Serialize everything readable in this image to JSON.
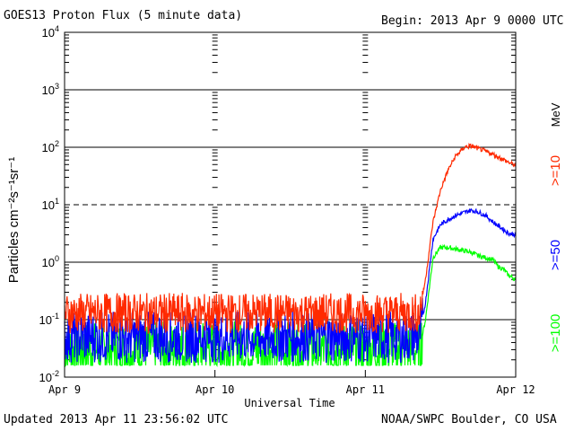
{
  "header": {
    "title": "GOES13 Proton Flux (5 minute data)",
    "begin": "Begin: 2013 Apr 9 0000 UTC"
  },
  "footer": {
    "updated": "Updated 2013 Apr 11 23:56:02 UTC",
    "credit": "NOAA/SWPC Boulder, CO USA"
  },
  "chart_data": {
    "type": "line",
    "title": "GOES13 Proton Flux (5 minute data)",
    "xlabel": "Universal Time",
    "ylabel": "Particles cm⁻²s⁻¹sr⁻¹",
    "y_scale": "log",
    "ylim": [
      0.01,
      10000
    ],
    "y_ticks": [
      {
        "value": 0.01,
        "base": "10",
        "exp": "-2"
      },
      {
        "value": 0.1,
        "base": "10",
        "exp": "-1"
      },
      {
        "value": 1,
        "base": "10",
        "exp": "0"
      },
      {
        "value": 10,
        "base": "10",
        "exp": "1"
      },
      {
        "value": 100,
        "base": "10",
        "exp": "2"
      },
      {
        "value": 1000,
        "base": "10",
        "exp": "3"
      },
      {
        "value": 10000,
        "base": "10",
        "exp": "4"
      }
    ],
    "x_ticks": [
      "Apr 9",
      "Apr 10",
      "Apr 11",
      "Apr 12"
    ],
    "threshold": 10,
    "legend_unit": "MeV",
    "legend_position": "right",
    "series": [
      {
        "name": ">=10",
        "color": "#ff2a00",
        "x": [
          9.0,
          10.0,
          11.0,
          11.36,
          11.4,
          11.45,
          11.5,
          11.55,
          11.6,
          11.66,
          11.7,
          11.75,
          11.8,
          11.85,
          11.9,
          11.95,
          12.0
        ],
        "y": [
          0.13,
          0.13,
          0.13,
          0.13,
          0.5,
          5,
          18,
          40,
          70,
          100,
          105,
          95,
          85,
          75,
          65,
          55,
          48
        ]
      },
      {
        "name": ">=50",
        "color": "#0000ff",
        "x": [
          9.0,
          10.0,
          11.0,
          11.36,
          11.4,
          11.45,
          11.5,
          11.55,
          11.6,
          11.7,
          11.75,
          11.8,
          11.85,
          11.9,
          11.95,
          12.0
        ],
        "y": [
          0.05,
          0.05,
          0.05,
          0.05,
          0.2,
          2.5,
          4.5,
          5.5,
          6.5,
          8,
          7.5,
          6.5,
          5,
          4,
          3.2,
          3
        ]
      },
      {
        "name": ">=100",
        "color": "#00ff00",
        "x": [
          9.0,
          10.0,
          11.0,
          11.36,
          11.4,
          11.45,
          11.5,
          11.55,
          11.6,
          11.7,
          11.75,
          11.8,
          11.85,
          11.88,
          11.92,
          11.95,
          12.0
        ],
        "y": [
          0.03,
          0.03,
          0.03,
          0.03,
          0.1,
          1.2,
          1.8,
          1.8,
          1.7,
          1.5,
          1.3,
          1.2,
          1.1,
          0.85,
          0.75,
          0.6,
          0.5
        ]
      }
    ]
  }
}
